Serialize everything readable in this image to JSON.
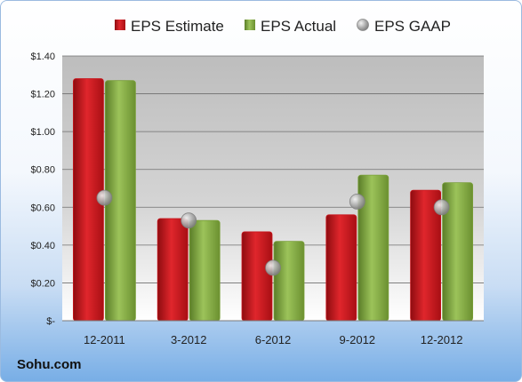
{
  "source_label": "Sohu.com",
  "colors": {
    "estimate": "#c8161d",
    "actual": "#7aa03a",
    "gaap": "#a7a7a7"
  },
  "chart_data": {
    "type": "bar",
    "categories": [
      "12-2011",
      "3-2012",
      "6-2012",
      "9-2012",
      "12-2012"
    ],
    "series": [
      {
        "name": "EPS Estimate",
        "kind": "bar",
        "values": [
          1.28,
          0.54,
          0.47,
          0.56,
          0.69
        ]
      },
      {
        "name": "EPS Actual",
        "kind": "bar",
        "values": [
          1.27,
          0.53,
          0.42,
          0.77,
          0.73
        ]
      },
      {
        "name": "EPS GAAP",
        "kind": "marker",
        "values": [
          0.65,
          0.53,
          0.28,
          0.63,
          0.6
        ]
      }
    ],
    "ylim": [
      0,
      1.4
    ],
    "y_ticks": [
      0,
      0.2,
      0.4,
      0.6,
      0.8,
      1.0,
      1.2,
      1.4
    ],
    "y_tick_labels": [
      "$-",
      "$0.20",
      "$0.40",
      "$0.60",
      "$0.80",
      "$1.00",
      "$1.20",
      "$1.40"
    ],
    "grid": true,
    "legend_position": "top"
  }
}
